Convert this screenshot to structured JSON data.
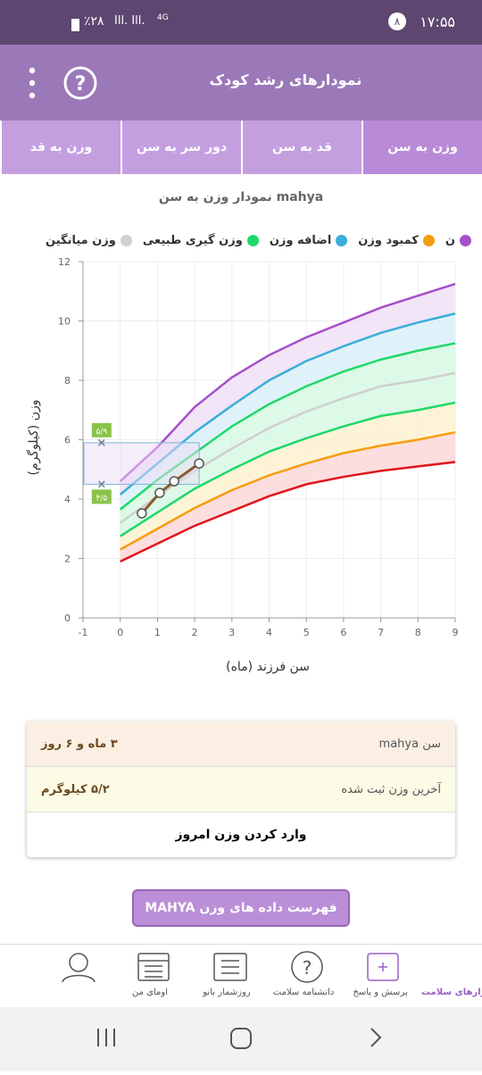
{
  "status_bar": {
    "time": "۱۷:۵۵",
    "notifications": "۸",
    "battery": "٪۲۸",
    "network": "4G"
  },
  "header": {
    "title": "نمودارهای رشد کودک"
  },
  "tabs": {
    "items": [
      "وزن به قد",
      "دور سر به سن",
      "قد به سن",
      "وزن به سن"
    ],
    "selected": 3
  },
  "chart_data": {
    "type": "line",
    "title": "نمودار وزن به سن mahya",
    "x_label": "سن فرزند (ماه)",
    "y_label": "وزن (کیلوگرم)",
    "legend": [
      {
        "name": "ن",
        "color": "#a64fc9"
      },
      {
        "name": "کمبود وزن",
        "color": "#f59d0e"
      },
      {
        "name": "اضافه وزن",
        "color": "#3aaed8"
      },
      {
        "name": "وزن گیری طبیعی",
        "color": "#1fd86a"
      },
      {
        "name": "وزن میانگین",
        "color": "#cfcfcf"
      }
    ],
    "x": [
      0,
      1,
      2,
      3,
      4,
      5,
      6,
      7,
      8,
      9
    ],
    "series": [
      {
        "color": "#e0161d",
        "values": [
          1.9,
          2.5,
          3.1,
          3.6,
          4.1,
          4.5,
          4.75,
          4.95,
          5.1,
          5.25
        ]
      },
      {
        "color": "#f59d0e",
        "values": [
          2.3,
          3.0,
          3.7,
          4.3,
          4.8,
          5.2,
          5.55,
          5.8,
          6.0,
          6.25
        ]
      },
      {
        "color": "#1fd86a",
        "values": [
          2.75,
          3.55,
          4.35,
          5.0,
          5.6,
          6.05,
          6.45,
          6.8,
          7.0,
          7.25
        ]
      },
      {
        "color": "#cfcfcf",
        "values": [
          3.2,
          4.1,
          4.95,
          5.7,
          6.4,
          6.95,
          7.4,
          7.8,
          8.0,
          8.25
        ]
      },
      {
        "color": "#1fd86a",
        "values": [
          3.65,
          4.65,
          5.55,
          6.45,
          7.2,
          7.8,
          8.3,
          8.7,
          9.0,
          9.25
        ]
      },
      {
        "color": "#3aaed8",
        "values": [
          4.15,
          5.2,
          6.25,
          7.15,
          8.0,
          8.65,
          9.15,
          9.6,
          9.95,
          10.25
        ]
      },
      {
        "color": "#a64fc9",
        "values": [
          4.6,
          5.75,
          7.1,
          8.1,
          8.85,
          9.45,
          9.95,
          10.45,
          10.85,
          11.25
        ]
      }
    ],
    "bands": [
      "#fcd6d6",
      "#fdf1cd",
      "#d4f7e1",
      "#d4f7e1",
      "#d8eff8",
      "#efdef6"
    ],
    "child_points": {
      "color": "#8a5a2e",
      "x": [
        0.58,
        1.06,
        1.45,
        2.12
      ],
      "values": [
        3.52,
        4.21,
        4.6,
        5.2
      ]
    },
    "target_range": {
      "color": "#7fb2d8",
      "label_color": "#8bc34a",
      "values": [
        5.9,
        4.5
      ],
      "value_labels": [
        "۵/۹",
        "۴/۵"
      ]
    },
    "xlim": [
      -1,
      9
    ],
    "xticks": [
      -1,
      0,
      1,
      2,
      3,
      4,
      5,
      6,
      7,
      8,
      9
    ],
    "ylim": [
      0,
      12
    ],
    "yticks": [
      0,
      2,
      4,
      6,
      8,
      10,
      12
    ],
    "grid": true
  },
  "info_card": {
    "rows": [
      {
        "label": "سن mahya",
        "value": "۳ ماه و ۶ روز",
        "color": "#fbefe4"
      },
      {
        "label": "آخرین وزن ثبت شده",
        "value": "۵/۲ کیلوگرم",
        "color": "#fbfbe6"
      }
    ],
    "action": "وارد کردن وزن امروز"
  },
  "list_button": "فهرست داده های وزن MAHYA",
  "bottom_nav": {
    "items": [
      "ابزارهای سلامت",
      "پرسش و پاسخ",
      "دانشنامه سلامت",
      "روزشمار بانو",
      "اومای من"
    ],
    "selected": 0
  }
}
